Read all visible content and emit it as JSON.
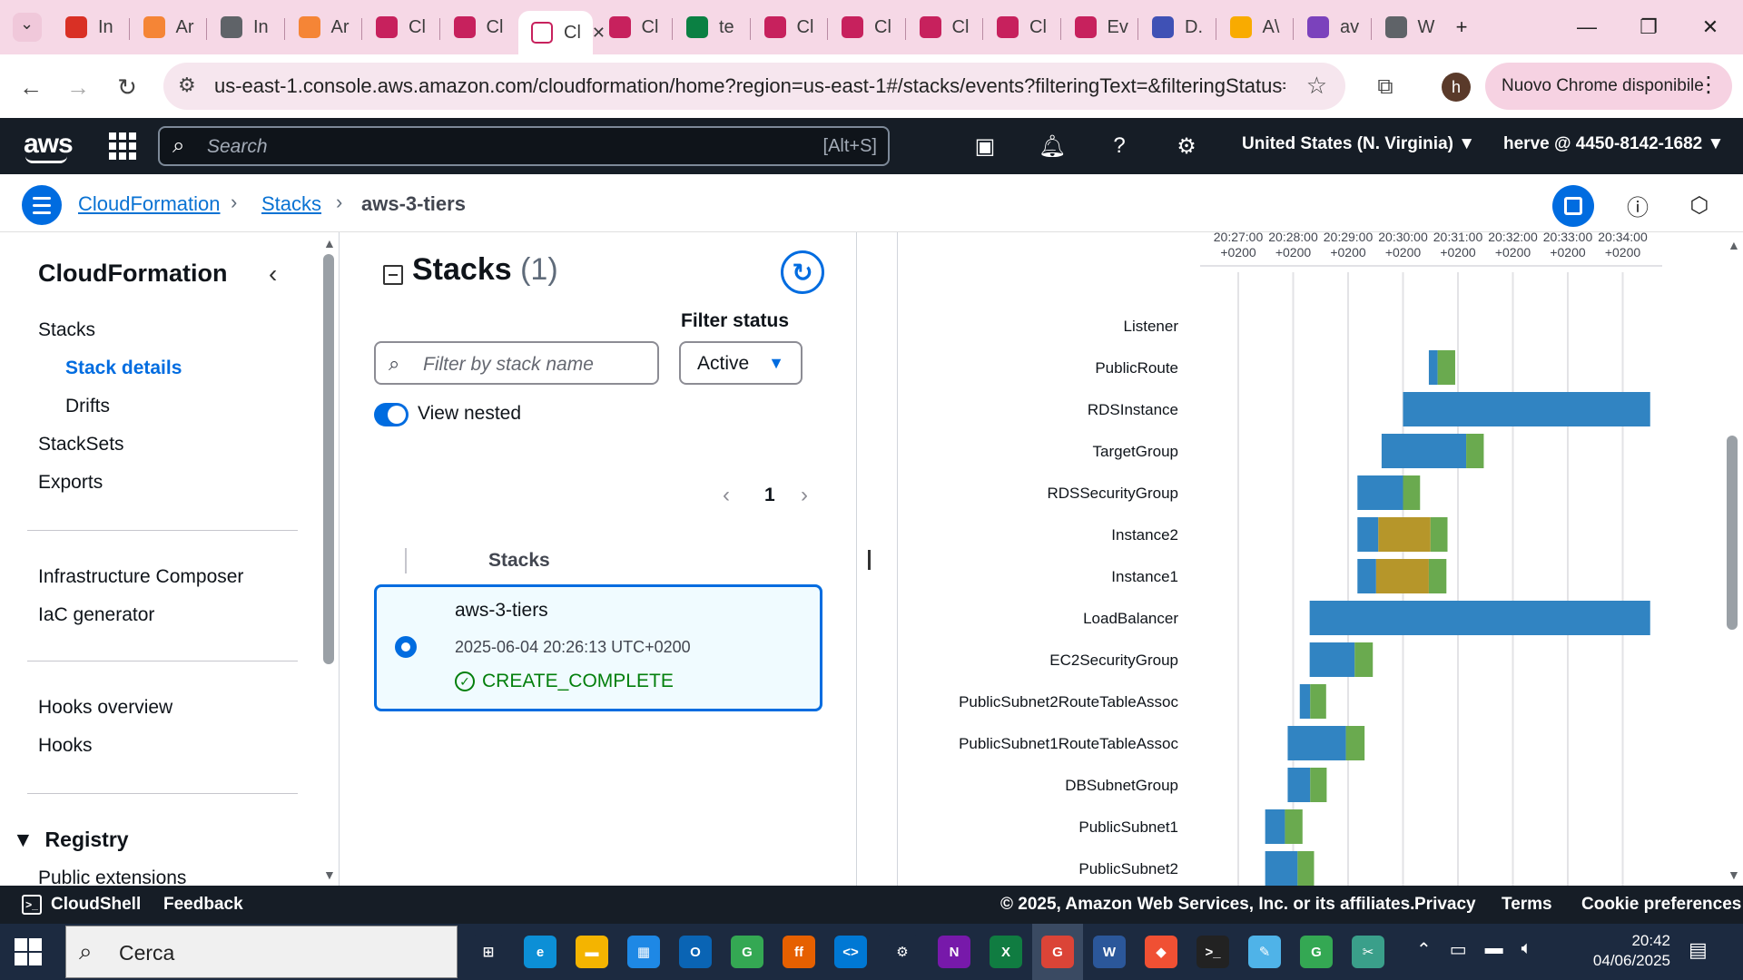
{
  "browser": {
    "tabs": [
      {
        "label": "In",
        "color": "#d93025"
      },
      {
        "label": "Ar",
        "color": "#f58536"
      },
      {
        "label": "In",
        "color": "#5f6368"
      },
      {
        "label": "Ar",
        "color": "#f58536"
      },
      {
        "label": "Cl",
        "color": "#c7215d"
      },
      {
        "label": "Cl",
        "color": "#c7215d"
      },
      {
        "label": "Cl",
        "color": "#ffffff"
      },
      {
        "label": "Cl",
        "color": "#c7215d"
      },
      {
        "label": "te",
        "color": "#0b8043"
      },
      {
        "label": "Cl",
        "color": "#c7215d"
      },
      {
        "label": "Cl",
        "color": "#c7215d"
      },
      {
        "label": "Cl",
        "color": "#c7215d"
      },
      {
        "label": "Cl",
        "color": "#c7215d"
      },
      {
        "label": "Ev",
        "color": "#c7215d"
      },
      {
        "label": "D.",
        "color": "#3f51b5"
      },
      {
        "label": "A\\",
        "color": "#f9ab00"
      },
      {
        "label": "av",
        "color": "#7b42bc"
      },
      {
        "label": "W",
        "color": "#5f6368"
      }
    ],
    "active_tab_label": "Cl",
    "url": "us-east-1.console.aws.amazon.com/cloudformation/home?region=us-east-1#/stacks/events?filteringText=&filteringStatus=ac...",
    "new_chrome_label": "Nuovo Chrome disponibile",
    "profile_initial": "h"
  },
  "aws_nav": {
    "logo": "aws",
    "search_placeholder": "Search",
    "search_shortcut": "[Alt+S]",
    "region": "United States (N. Virginia) ▼",
    "account": "herve @ 4450-8142-1682 ▼"
  },
  "breadcrumb": {
    "items": [
      "CloudFormation",
      "Stacks"
    ],
    "current": "aws-3-tiers"
  },
  "sidebar": {
    "title": "CloudFormation",
    "group1": [
      "Stacks",
      "Stack details",
      "Drifts",
      "StackSets",
      "Exports"
    ],
    "group2": [
      "Infrastructure Composer",
      "IaC generator"
    ],
    "group3": [
      "Hooks overview",
      "Hooks"
    ],
    "registry_label": "Registry",
    "registry_item": "Public extensions"
  },
  "stacks_panel": {
    "title": "Stacks",
    "count": "(1)",
    "filter_placeholder": "Filter by stack name",
    "filter_status_label": "Filter status",
    "filter_status_value": "Active",
    "view_nested_label": "View nested",
    "page_number": "1",
    "column_header": "Stacks",
    "stack": {
      "name": "aws-3-tiers",
      "created": "2025-06-04 20:26:13 UTC+0200",
      "status": "CREATE_COMPLETE"
    }
  },
  "timeline": {
    "tz": "+0200",
    "ticks": [
      "20:27:00",
      "20:28:00",
      "20:29:00",
      "20:30:00",
      "20:31:00",
      "20:32:00",
      "20:33:00",
      "20:34:00",
      "20:"
    ],
    "resources": [
      "Listener",
      "PublicRoute",
      "RDSInstance",
      "TargetGroup",
      "RDSSecurityGroup",
      "Instance2",
      "Instance1",
      "LoadBalancer",
      "EC2SecurityGroup",
      "PublicSubnet2RouteTableAssoc",
      "PublicSubnet1RouteTableAssoc",
      "DBSubnetGroup",
      "PublicSubnet1",
      "PublicSubnet2"
    ],
    "colors": {
      "in_progress": "#3184c2",
      "configuration": "#b6962a",
      "complete": "#6aaa4f"
    }
  },
  "chart_data": {
    "type": "gantt",
    "title": "",
    "time_unit": "minutes after 20:27:00 (+0200)",
    "xlim": [
      -0.7,
      7.5
    ],
    "x_ticks": [
      0,
      1,
      2,
      3,
      4,
      5,
      6,
      7,
      8
    ],
    "rows": [
      {
        "resource": "Listener",
        "segments": []
      },
      {
        "resource": "PublicRoute",
        "segments": [
          {
            "kind": "in_progress",
            "start": 3.47,
            "end": 3.63
          },
          {
            "kind": "complete",
            "start": 3.63,
            "end": 3.95
          }
        ]
      },
      {
        "resource": "RDSInstance",
        "segments": [
          {
            "kind": "in_progress",
            "start": 3.0,
            "end": 7.5
          }
        ]
      },
      {
        "resource": "TargetGroup",
        "segments": [
          {
            "kind": "in_progress",
            "start": 2.61,
            "end": 4.15
          },
          {
            "kind": "complete",
            "start": 4.15,
            "end": 4.47
          }
        ]
      },
      {
        "resource": "RDSSecurityGroup",
        "segments": [
          {
            "kind": "in_progress",
            "start": 2.17,
            "end": 3.0
          },
          {
            "kind": "complete",
            "start": 3.0,
            "end": 3.31
          }
        ]
      },
      {
        "resource": "Instance2",
        "segments": [
          {
            "kind": "in_progress",
            "start": 2.17,
            "end": 2.55
          },
          {
            "kind": "configuration",
            "start": 2.55,
            "end": 3.5
          },
          {
            "kind": "complete",
            "start": 3.5,
            "end": 3.81
          }
        ]
      },
      {
        "resource": "Instance1",
        "segments": [
          {
            "kind": "in_progress",
            "start": 2.17,
            "end": 2.51
          },
          {
            "kind": "configuration",
            "start": 2.51,
            "end": 3.47
          },
          {
            "kind": "complete",
            "start": 3.47,
            "end": 3.79
          }
        ]
      },
      {
        "resource": "LoadBalancer",
        "segments": [
          {
            "kind": "in_progress",
            "start": 1.3,
            "end": 7.5
          }
        ]
      },
      {
        "resource": "EC2SecurityGroup",
        "segments": [
          {
            "kind": "in_progress",
            "start": 1.3,
            "end": 2.12
          },
          {
            "kind": "complete",
            "start": 2.12,
            "end": 2.45
          }
        ]
      },
      {
        "resource": "PublicSubnet2RouteTableAssoc",
        "segments": [
          {
            "kind": "in_progress",
            "start": 1.12,
            "end": 1.31
          },
          {
            "kind": "complete",
            "start": 1.31,
            "end": 1.6
          }
        ]
      },
      {
        "resource": "PublicSubnet1RouteTableAssoc",
        "segments": [
          {
            "kind": "in_progress",
            "start": 0.9,
            "end": 1.96
          },
          {
            "kind": "complete",
            "start": 1.96,
            "end": 2.3
          }
        ]
      },
      {
        "resource": "DBSubnetGroup",
        "segments": [
          {
            "kind": "in_progress",
            "start": 0.9,
            "end": 1.31
          },
          {
            "kind": "complete",
            "start": 1.31,
            "end": 1.61
          }
        ]
      },
      {
        "resource": "PublicSubnet1",
        "segments": [
          {
            "kind": "in_progress",
            "start": 0.49,
            "end": 0.85
          },
          {
            "kind": "complete",
            "start": 0.85,
            "end": 1.17
          }
        ]
      },
      {
        "resource": "PublicSubnet2",
        "segments": [
          {
            "kind": "in_progress",
            "start": 0.49,
            "end": 1.08
          },
          {
            "kind": "complete",
            "start": 1.08,
            "end": 1.38
          }
        ]
      }
    ]
  },
  "footer": {
    "cloudshell": "CloudShell",
    "feedback": "Feedback",
    "copyright": "© 2025, Amazon Web Services, Inc. or its affiliates.",
    "privacy": "Privacy",
    "terms": "Terms",
    "cookies": "Cookie preferences"
  },
  "taskbar": {
    "search_placeholder": "Cerca",
    "apps": [
      {
        "name": "task-view",
        "label": "⊞",
        "color": "#1c2a40"
      },
      {
        "name": "edge",
        "label": "e",
        "color": "#0c8fd6"
      },
      {
        "name": "file-explorer",
        "label": "▬",
        "color": "#f4b400"
      },
      {
        "name": "store",
        "label": "▦",
        "color": "#1e88e5"
      },
      {
        "name": "outlook",
        "label": "O",
        "color": "#0a64b4"
      },
      {
        "name": "chrome-1",
        "label": "G",
        "color": "#34a853"
      },
      {
        "name": "firefox",
        "label": "ff",
        "color": "#e66000"
      },
      {
        "name": "vscode",
        "label": "<>",
        "color": "#0078d4"
      },
      {
        "name": "settings",
        "label": "⚙",
        "color": "#1c2a40"
      },
      {
        "name": "onenote",
        "label": "N",
        "color": "#7719aa"
      },
      {
        "name": "excel",
        "label": "X",
        "color": "#107c41"
      },
      {
        "name": "chrome-active",
        "label": "G",
        "color": "#db4437"
      },
      {
        "name": "word",
        "label": "W",
        "color": "#2b579a"
      },
      {
        "name": "git",
        "label": "◆",
        "color": "#f05033"
      },
      {
        "name": "terminal",
        "label": ">_",
        "color": "#222222"
      },
      {
        "name": "notepad",
        "label": "✎",
        "color": "#4fb3e8"
      },
      {
        "name": "chrome-2",
        "label": "G",
        "color": "#34a853"
      },
      {
        "name": "snipping",
        "label": "✂",
        "color": "#3a9f8a"
      }
    ],
    "time": "20:42",
    "date": "04/06/2025"
  }
}
